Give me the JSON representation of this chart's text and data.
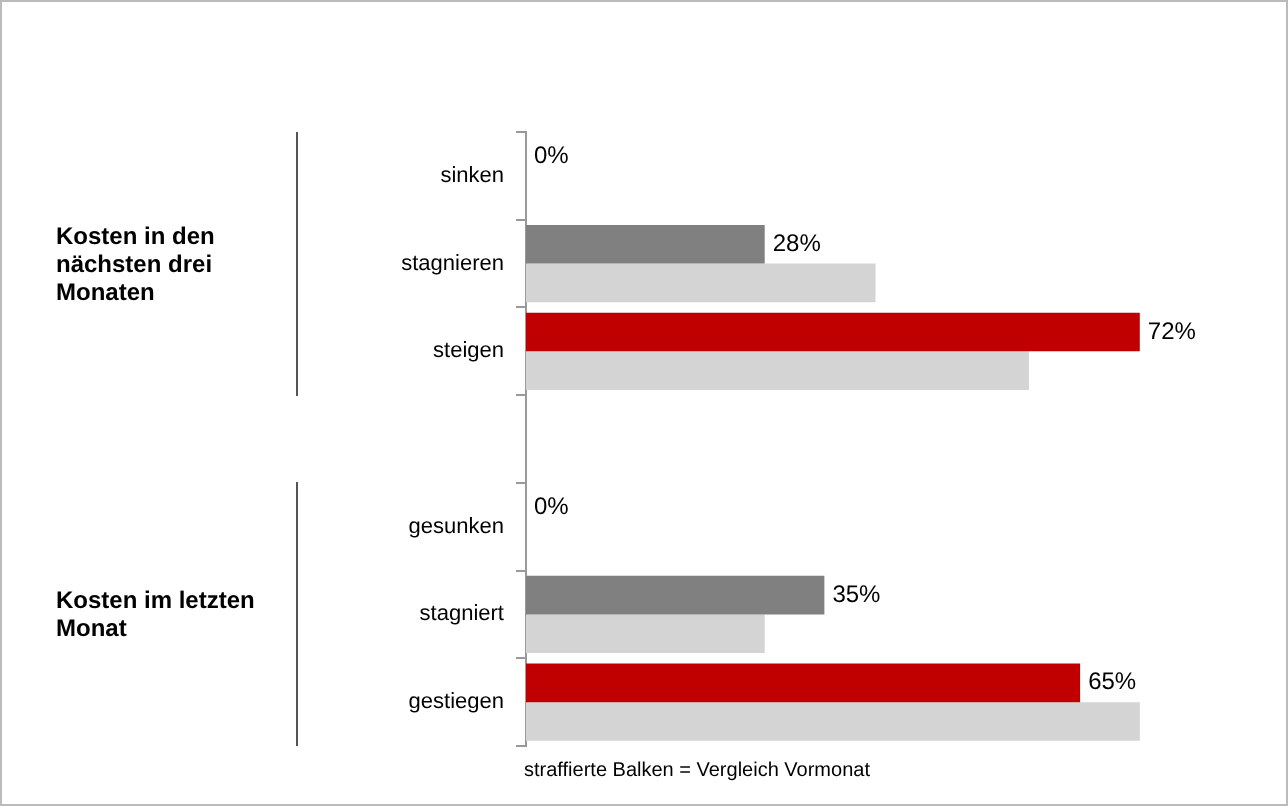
{
  "chart_data": {
    "type": "bar",
    "orientation": "horizontal",
    "categories": [
      "sinken",
      "stagnieren",
      "steigen",
      null,
      "gesunken",
      "stagniert",
      "gestiegen"
    ],
    "series": [
      {
        "colors": [
          "#808080",
          "#808080",
          "#c00000",
          null,
          "#808080",
          "#808080",
          "#c00000"
        ],
        "color": "#c00000",
        "values": [
          0,
          28,
          72,
          null,
          0,
          35,
          65
        ],
        "value_labels": [
          "0%",
          "28%",
          "72%",
          null,
          "0%",
          "35%",
          "65%"
        ]
      },
      {
        "color": "#d4d4d4",
        "values": [
          0,
          41,
          59,
          null,
          0,
          28,
          72
        ]
      }
    ],
    "tick_labels": "y",
    "legend": false,
    "annotations": [
      "Kosten in den nächsten drei Monaten",
      "Kosten im letzten Monat",
      "straffierte Balken = Vergleich Vormonat"
    ]
  }
}
